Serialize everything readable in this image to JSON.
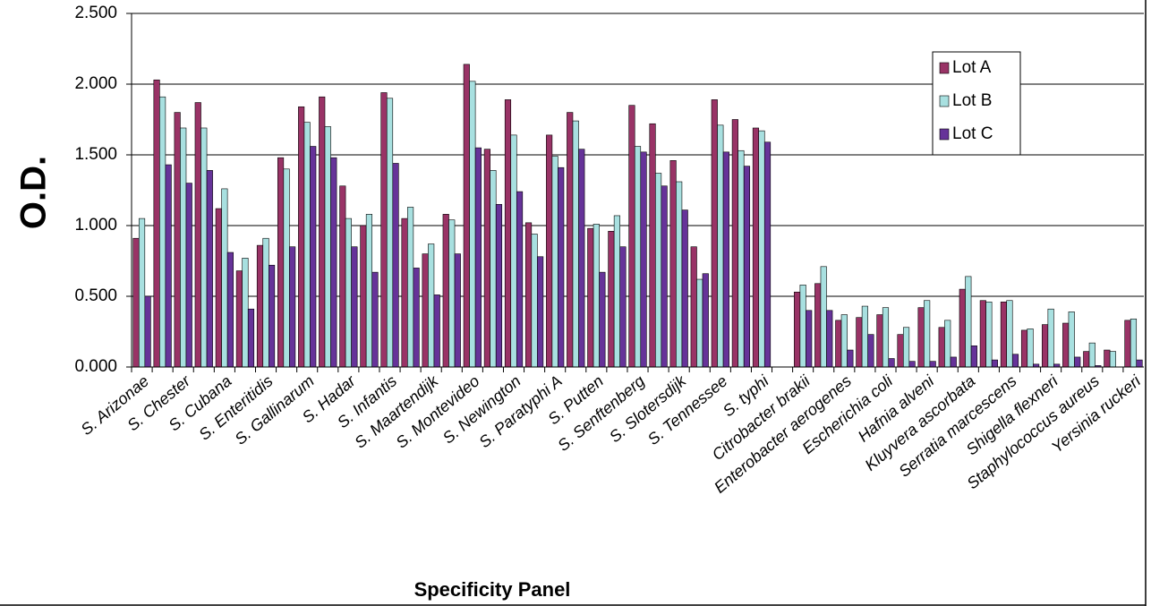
{
  "chart_data": {
    "type": "bar",
    "y_label": "O.D.",
    "x_label": "Specificity Panel",
    "categories": [
      "S. Arizonae",
      null,
      "S. Chester",
      null,
      "S. Cubana",
      null,
      "S. Enteritidis",
      null,
      "S. Gallinarum",
      null,
      "S. Hadar",
      null,
      "S. Infantis",
      null,
      "S. Maartendijk",
      null,
      "S. Montevideo",
      null,
      "S. Newington",
      null,
      "S. Paratyphi A",
      null,
      "S. Putten",
      null,
      "S. Senftenberg",
      null,
      "S. Slotersdijk",
      null,
      "S. Tennessee",
      null,
      "S. typhi",
      null,
      "Citrobacter brakii",
      null,
      "Enterobacter aerogenes",
      null,
      "Escherichia coli",
      null,
      "Hafnia alveni",
      null,
      "Kluyvera ascorbata",
      null,
      "Serratia marcescens",
      null,
      "Shigella flexneri",
      null,
      "Staphylococcus aureus",
      null,
      "Yersinia ruckeri"
    ],
    "series": [
      {
        "name": "Lot A",
        "color": "#993366",
        "values": [
          0.91,
          2.03,
          1.8,
          1.87,
          1.12,
          0.68,
          0.86,
          1.48,
          1.84,
          1.91,
          1.28,
          1.0,
          1.94,
          1.05,
          0.8,
          1.08,
          2.14,
          1.54,
          1.89,
          1.02,
          1.64,
          1.8,
          0.98,
          0.96,
          1.85,
          1.72,
          1.46,
          0.85,
          1.89,
          1.75,
          1.69,
          null,
          0.53,
          0.59,
          0.33,
          0.35,
          0.37,
          0.23,
          0.42,
          0.28,
          0.55,
          0.47,
          0.46,
          0.26,
          0.3,
          0.31,
          0.11,
          0.12,
          0.33
        ]
      },
      {
        "name": "Lot B",
        "color": "#a8e0e0",
        "values": [
          1.05,
          1.91,
          1.69,
          1.69,
          1.26,
          0.77,
          0.91,
          1.4,
          1.73,
          1.7,
          1.05,
          1.08,
          1.9,
          1.13,
          0.87,
          1.04,
          2.02,
          1.39,
          1.64,
          0.94,
          1.49,
          1.74,
          1.01,
          1.07,
          1.56,
          1.37,
          1.31,
          0.62,
          1.71,
          1.53,
          1.67,
          null,
          0.58,
          0.71,
          0.37,
          0.43,
          0.42,
          0.28,
          0.47,
          0.33,
          0.64,
          0.46,
          0.47,
          0.27,
          0.41,
          0.39,
          0.17,
          0.11,
          0.34
        ]
      },
      {
        "name": "Lot C",
        "color": "#663399",
        "values": [
          0.5,
          1.43,
          1.3,
          1.39,
          0.81,
          0.41,
          0.72,
          0.85,
          1.56,
          1.48,
          0.85,
          0.67,
          1.44,
          0.7,
          0.51,
          0.8,
          1.55,
          1.15,
          1.24,
          0.78,
          1.41,
          1.54,
          0.67,
          0.85,
          1.52,
          1.28,
          1.11,
          0.66,
          1.52,
          1.42,
          1.59,
          null,
          0.4,
          0.4,
          0.12,
          0.23,
          0.06,
          0.04,
          0.04,
          0.07,
          0.15,
          0.05,
          0.09,
          0.02,
          0.02,
          0.07,
          0.01,
          null,
          0.05
        ]
      }
    ],
    "ylim": [
      0,
      2.5
    ],
    "yticks": [
      {
        "value": 0,
        "label": "0.000"
      },
      {
        "value": 0.5,
        "label": "0.500"
      },
      {
        "value": 1,
        "label": "1.000"
      },
      {
        "value": 1.5,
        "label": "1.500"
      },
      {
        "value": 2,
        "label": "2.000"
      },
      {
        "value": 2.5,
        "label": "2.500"
      }
    ],
    "grid": true,
    "legend": "upper-right"
  }
}
